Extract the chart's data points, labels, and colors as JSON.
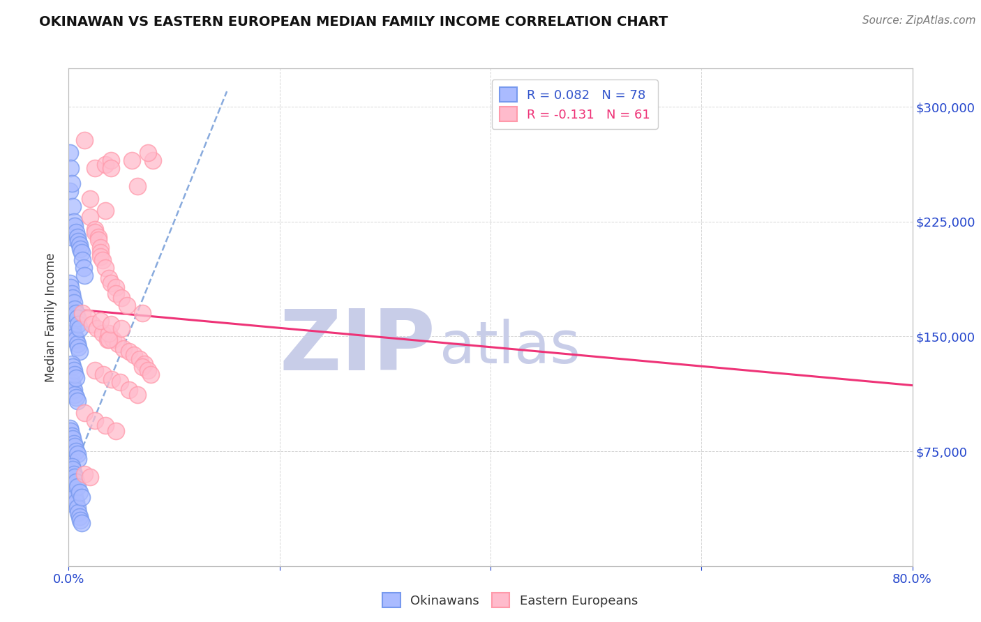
{
  "title": "OKINAWAN VS EASTERN EUROPEAN MEDIAN FAMILY INCOME CORRELATION CHART",
  "source": "Source: ZipAtlas.com",
  "ylabel": "Median Family Income",
  "xlim": [
    0.0,
    0.8
  ],
  "ylim": [
    0,
    325000
  ],
  "ytick_vals": [
    0,
    75000,
    150000,
    225000,
    300000
  ],
  "ytick_labels_right": [
    "",
    "$75,000",
    "$150,000",
    "$225,000",
    "$300,000"
  ],
  "xticks": [
    0.0,
    0.2,
    0.4,
    0.6,
    0.8
  ],
  "xtick_labels": [
    "0.0%",
    "",
    "",
    "",
    "80.0%"
  ],
  "blue_color": "#7799EE",
  "blue_face": "#AABBFF",
  "pink_color": "#FF99AA",
  "pink_face": "#FFBBCC",
  "pink_line_color": "#EE3377",
  "blue_line_color": "#88AADD",
  "blue_label": "Okinawans",
  "pink_label": "Eastern Europeans",
  "legend_line1": "R = 0.082   N = 78",
  "legend_line2": "R = -0.131   N = 61",
  "legend_color1": "#3355CC",
  "legend_color2": "#EE3377",
  "watermark1": "ZIP",
  "watermark2": "atlas",
  "watermark_color": "#C8CDE8",
  "bg_color": "#FFFFFF",
  "grid_color": "#BBBBBB",
  "title_color": "#111111",
  "source_color": "#777777",
  "tick_color": "#2244CC",
  "ylabel_color": "#333333",
  "blue_x": [
    0.001,
    0.001,
    0.001,
    0.002,
    0.002,
    0.002,
    0.002,
    0.003,
    0.003,
    0.003,
    0.003,
    0.004,
    0.004,
    0.004,
    0.005,
    0.005,
    0.005,
    0.005,
    0.006,
    0.006,
    0.006,
    0.007,
    0.007,
    0.007,
    0.008,
    0.008,
    0.008,
    0.009,
    0.009,
    0.009,
    0.01,
    0.01,
    0.01,
    0.011,
    0.011,
    0.012,
    0.012,
    0.013,
    0.014,
    0.015,
    0.001,
    0.002,
    0.003,
    0.004,
    0.005,
    0.006,
    0.007,
    0.008,
    0.009,
    0.01,
    0.001,
    0.002,
    0.003,
    0.004,
    0.005,
    0.006,
    0.007,
    0.008,
    0.009,
    0.003,
    0.004,
    0.005,
    0.006,
    0.007,
    0.008,
    0.003,
    0.004,
    0.005,
    0.006,
    0.007,
    0.003,
    0.004,
    0.005,
    0.006,
    0.007,
    0.008,
    0.01,
    0.012
  ],
  "blue_y": [
    270000,
    245000,
    62000,
    260000,
    215000,
    68000,
    45000,
    250000,
    165000,
    152000,
    58000,
    235000,
    155000,
    53000,
    225000,
    148000,
    50000,
    40000,
    222000,
    150000,
    45000,
    218000,
    148000,
    42000,
    215000,
    145000,
    38000,
    212000,
    143000,
    35000,
    210000,
    140000,
    32000,
    207000,
    30000,
    205000,
    28000,
    200000,
    195000,
    190000,
    185000,
    182000,
    178000,
    175000,
    172000,
    168000,
    165000,
    162000,
    158000,
    155000,
    90000,
    88000,
    85000,
    83000,
    80000,
    78000,
    75000,
    73000,
    70000,
    120000,
    118000,
    115000,
    112000,
    110000,
    108000,
    132000,
    130000,
    128000,
    125000,
    123000,
    65000,
    63000,
    60000,
    58000,
    55000,
    52000,
    48000,
    45000
  ],
  "pink_x": [
    0.015,
    0.08,
    0.025,
    0.035,
    0.035,
    0.04,
    0.04,
    0.06,
    0.065,
    0.02,
    0.02,
    0.025,
    0.025,
    0.028,
    0.028,
    0.03,
    0.03,
    0.03,
    0.032,
    0.035,
    0.038,
    0.04,
    0.045,
    0.045,
    0.05,
    0.055,
    0.07,
    0.075,
    0.013,
    0.018,
    0.022,
    0.027,
    0.032,
    0.037,
    0.042,
    0.047,
    0.052,
    0.057,
    0.062,
    0.067,
    0.072,
    0.038,
    0.038,
    0.025,
    0.033,
    0.041,
    0.049,
    0.057,
    0.065,
    0.015,
    0.025,
    0.035,
    0.045,
    0.015,
    0.02,
    0.03,
    0.04,
    0.05,
    0.07,
    0.075,
    0.078
  ],
  "pink_y": [
    278000,
    265000,
    260000,
    262000,
    232000,
    265000,
    260000,
    265000,
    248000,
    240000,
    228000,
    220000,
    218000,
    215000,
    213000,
    208000,
    205000,
    202000,
    200000,
    195000,
    188000,
    185000,
    182000,
    178000,
    175000,
    170000,
    165000,
    270000,
    165000,
    162000,
    158000,
    155000,
    152000,
    148000,
    148000,
    145000,
    142000,
    140000,
    138000,
    135000,
    132000,
    152000,
    148000,
    128000,
    125000,
    122000,
    120000,
    115000,
    112000,
    100000,
    95000,
    92000,
    88000,
    60000,
    58000,
    160000,
    158000,
    155000,
    130000,
    128000,
    125000
  ],
  "blue_trend_x0": 0.0,
  "blue_trend_x1": 0.15,
  "blue_trend_y0": 55000,
  "blue_trend_y1": 310000,
  "pink_trend_x0": 0.0,
  "pink_trend_x1": 0.8,
  "pink_trend_y0": 168000,
  "pink_trend_y1": 118000
}
